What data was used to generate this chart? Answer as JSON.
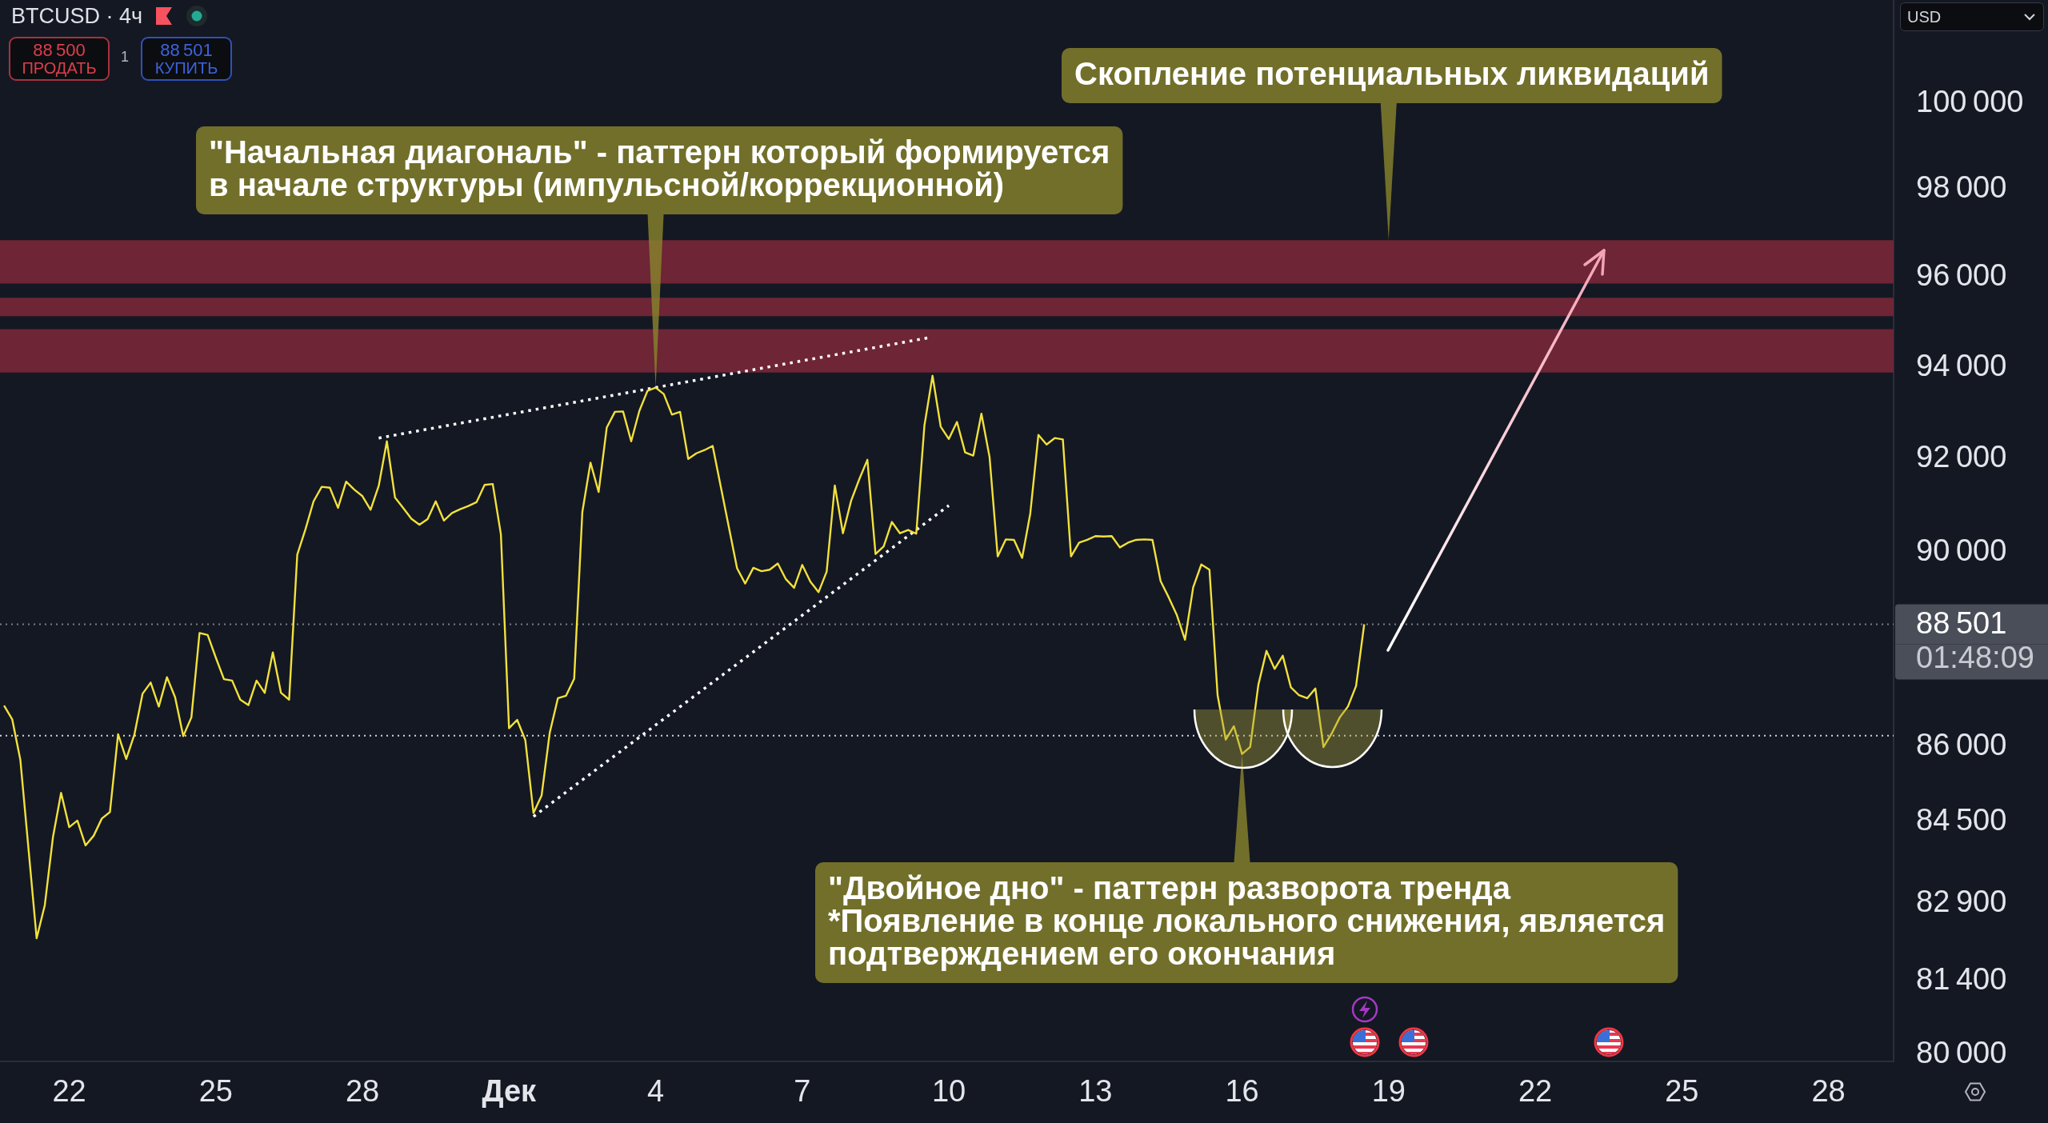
{
  "chart_data": {
    "type": "line",
    "title": "BTCUSD · 4ч",
    "ylabel": "USD",
    "xlim": [
      "--11-20T14:00",
      "--12-29T08:00"
    ],
    "xticks": [
      {
        "value": "--11-22",
        "label": "22"
      },
      {
        "value": "--11-25",
        "label": "25"
      },
      {
        "value": "--11-28",
        "label": "28"
      },
      {
        "value": "--12-01",
        "label": "Дек"
      },
      {
        "value": "--12-04",
        "label": "4"
      },
      {
        "value": "--12-07",
        "label": "7"
      },
      {
        "value": "--12-10",
        "label": "10"
      },
      {
        "value": "--12-13",
        "label": "13"
      },
      {
        "value": "--12-16",
        "label": "16"
      },
      {
        "value": "--12-19",
        "label": "19"
      },
      {
        "value": "--12-22",
        "label": "22"
      },
      {
        "value": "--12-25",
        "label": "25"
      },
      {
        "value": "--12-28",
        "label": "28"
      }
    ],
    "ylim": [
      79880,
      102450
    ],
    "yticks": [
      {
        "value": 100000,
        "label": "100 000"
      },
      {
        "value": 98000,
        "label": "98 000"
      },
      {
        "value": 96000,
        "label": "96 000"
      },
      {
        "value": 94000,
        "label": "94 000"
      },
      {
        "value": 92000,
        "label": "92 000"
      },
      {
        "value": 90000,
        "label": "90 000"
      },
      {
        "value": 86000,
        "label": "86 000"
      },
      {
        "value": 84500,
        "label": "84 500"
      },
      {
        "value": 82900,
        "label": "82 900"
      },
      {
        "value": 81400,
        "label": "81 400"
      },
      {
        "value": 80000,
        "label": "80 000"
      }
    ],
    "log": true,
    "grid": false,
    "legend": false,
    "series": [
      {
        "color": "#f2e13c",
        "x": [
          "--11-20T16:00",
          "--11-20T20:00",
          "--11-21T00:00",
          "--11-21T04:00",
          "--11-21T08:00",
          "--11-21T12:00",
          "--11-21T16:00",
          "--11-21T20:00",
          "--11-22T00:00",
          "--11-22T04:00",
          "--11-22T08:00",
          "--11-22T12:00",
          "--11-22T16:00",
          "--11-22T20:00",
          "--11-23T00:00",
          "--11-23T04:00",
          "--11-23T08:00",
          "--11-23T12:00",
          "--11-23T16:00",
          "--11-23T20:00",
          "--11-24T00:00",
          "--11-24T04:00",
          "--11-24T08:00",
          "--11-24T12:00",
          "--11-24T16:00",
          "--11-24T20:00",
          "--11-25T00:00",
          "--11-25T04:00",
          "--11-25T08:00",
          "--11-25T12:00",
          "--11-25T16:00",
          "--11-25T20:00",
          "--11-26T00:00",
          "--11-26T04:00",
          "--11-26T08:00",
          "--11-26T12:00",
          "--11-26T16:00",
          "--11-26T20:00",
          "--11-27T00:00",
          "--11-27T04:00",
          "--11-27T08:00",
          "--11-27T12:00",
          "--11-27T16:00",
          "--11-27T20:00",
          "--11-28T00:00",
          "--11-28T04:00",
          "--11-28T08:00",
          "--11-28T12:00",
          "--11-28T16:00",
          "--11-28T20:00",
          "--11-29T00:00",
          "--11-29T04:00",
          "--11-29T08:00",
          "--11-29T12:00",
          "--11-29T16:00",
          "--11-29T20:00",
          "--11-30T00:00",
          "--11-30T04:00",
          "--11-30T08:00",
          "--11-30T12:00",
          "--11-30T16:00",
          "--11-30T20:00",
          "--12-01T00:00",
          "--12-01T04:00",
          "--12-01T08:00",
          "--12-01T12:00",
          "--12-01T16:00",
          "--12-01T20:00",
          "--12-02T00:00",
          "--12-02T04:00",
          "--12-02T08:00",
          "--12-02T12:00",
          "--12-02T16:00",
          "--12-02T20:00",
          "--12-03T00:00",
          "--12-03T04:00",
          "--12-03T08:00",
          "--12-03T12:00",
          "--12-03T16:00",
          "--12-03T20:00",
          "--12-04T00:00",
          "--12-04T04:00",
          "--12-04T08:00",
          "--12-04T12:00",
          "--12-04T16:00",
          "--12-04T20:00",
          "--12-05T00:00",
          "--12-05T04:00",
          "--12-05T08:00",
          "--12-05T12:00",
          "--12-05T16:00",
          "--12-05T20:00",
          "--12-06T00:00",
          "--12-06T04:00",
          "--12-06T08:00",
          "--12-06T12:00",
          "--12-06T16:00",
          "--12-06T20:00",
          "--12-07T00:00",
          "--12-07T04:00",
          "--12-07T08:00",
          "--12-07T12:00",
          "--12-07T16:00",
          "--12-07T20:00",
          "--12-08T00:00",
          "--12-08T04:00",
          "--12-08T08:00",
          "--12-08T12:00",
          "--12-08T16:00",
          "--12-08T20:00",
          "--12-09T00:00",
          "--12-09T04:00",
          "--12-09T08:00",
          "--12-09T12:00",
          "--12-09T16:00",
          "--12-09T20:00",
          "--12-10T00:00",
          "--12-10T04:00",
          "--12-10T08:00",
          "--12-10T12:00",
          "--12-10T16:00",
          "--12-10T20:00",
          "--12-11T00:00",
          "--12-11T04:00",
          "--12-11T08:00",
          "--12-11T12:00",
          "--12-11T16:00",
          "--12-11T20:00",
          "--12-12T00:00",
          "--12-12T04:00",
          "--12-12T08:00",
          "--12-12T12:00",
          "--12-12T16:00",
          "--12-12T20:00",
          "--12-13T00:00",
          "--12-13T04:00",
          "--12-13T08:00",
          "--12-13T12:00",
          "--12-13T16:00",
          "--12-13T20:00",
          "--12-14T00:00",
          "--12-14T04:00",
          "--12-14T08:00",
          "--12-14T12:00",
          "--12-14T16:00",
          "--12-14T20:00",
          "--12-15T00:00",
          "--12-15T04:00",
          "--12-15T08:00",
          "--12-15T12:00",
          "--12-15T16:00",
          "--12-15T20:00",
          "--12-16T00:00",
          "--12-16T04:00",
          "--12-16T08:00",
          "--12-16T12:00",
          "--12-16T16:00",
          "--12-16T20:00",
          "--12-17T00:00",
          "--12-17T04:00",
          "--12-17T08:00",
          "--12-17T12:00",
          "--12-17T16:00",
          "--12-17T20:00",
          "--12-18T00:00",
          "--12-18T04:00",
          "--12-18T08:00",
          "--12-18T12:00"
        ],
        "values": [
          86830,
          86550,
          85730,
          83960,
          82220,
          82860,
          84190,
          85070,
          84390,
          84520,
          84030,
          84220,
          84560,
          84690,
          86250,
          85750,
          86240,
          87070,
          87300,
          86810,
          87410,
          87000,
          86210,
          86590,
          88320,
          88280,
          87810,
          87370,
          87340,
          86950,
          86840,
          87340,
          87090,
          87920,
          87090,
          86950,
          89960,
          90490,
          91090,
          91400,
          91380,
          90950,
          91510,
          91340,
          91200,
          90910,
          91420,
          92380,
          91170,
          90950,
          90720,
          90590,
          90710,
          91090,
          90680,
          90840,
          90920,
          90990,
          91070,
          91440,
          91460,
          90390,
          86370,
          86540,
          86130,
          84670,
          85020,
          86280,
          86980,
          87030,
          87380,
          90860,
          91920,
          91290,
          92680,
          93020,
          93030,
          92380,
          93040,
          93480,
          93550,
          93410,
          92960,
          93020,
          92000,
          92120,
          92190,
          92280,
          91400,
          90530,
          89670,
          89350,
          89680,
          89610,
          89640,
          89770,
          89440,
          89260,
          89740,
          89390,
          89170,
          89600,
          91430,
          90410,
          91100,
          91560,
          91980,
          89970,
          90130,
          90650,
          90410,
          90480,
          90400,
          92720,
          93810,
          92700,
          92430,
          92800,
          92140,
          92070,
          92980,
          92040,
          89920,
          90280,
          90270,
          89890,
          90830,
          92520,
          92310,
          92450,
          92420,
          89920,
          90210,
          90270,
          90350,
          90340,
          90350,
          90110,
          90210,
          90270,
          90280,
          90270,
          89400,
          89060,
          88690,
          88180,
          89270,
          89750,
          89640,
          87040,
          86140,
          86410,
          85850,
          85990,
          87250,
          87950,
          87580,
          87850,
          87200,
          87040,
          86980,
          87180,
          85990,
          86260,
          86590,
          86810,
          87230,
          88501
        ]
      },
      {
        "type": "line",
        "color": "#ffffff",
        "line_style": "dotted",
        "x": [
          "--11-28T08:00",
          "--12-09T14:00"
        ],
        "values": [
          92450,
          94650
        ]
      },
      {
        "type": "line",
        "color": "#ffffff",
        "line_style": "dotted",
        "x": [
          "--12-01T12:00",
          "--12-10T00:00"
        ],
        "values": [
          84600,
          91000
        ]
      }
    ],
    "bands": [
      {
        "axis": "y",
        "from": 95860,
        "to": 96840,
        "color": "#6e2535"
      },
      {
        "axis": "y",
        "from": 95130,
        "to": 95540,
        "color": "#6e2535"
      },
      {
        "axis": "y",
        "from": 93880,
        "to": 94840,
        "color": "#6e2535"
      }
    ],
    "ref_lines": [
      {
        "axis": "y",
        "value": 88501,
        "label": "88 501",
        "color": "#7c7f89",
        "line_style": "dotted"
      },
      {
        "axis": "y",
        "value": 86220,
        "color": "#d1d4dc",
        "line_style": "dotted"
      }
    ],
    "annotations": [
      {
        "text": "Скопление потенциальных ликвидаций",
        "x": "--12-19T00:00",
        "y": 96840
      },
      {
        "text": "\"Начальная диагональ\" - паттерн который формируется\nв начале структуры (импульсной/коррекционной)",
        "x": "--12-04T00:00",
        "y": 93550
      },
      {
        "text": "\"Двойное дно\" - паттерн разворота тренда\n*Появление в конце локального снижения, является\nподтверждением его окончания",
        "x": "--12-16T00:00",
        "y": 85850
      },
      "01:48:09",
      "88 500",
      "ПРОДАТЬ",
      "1",
      "88 501",
      "КУПИТЬ"
    ]
  }
}
